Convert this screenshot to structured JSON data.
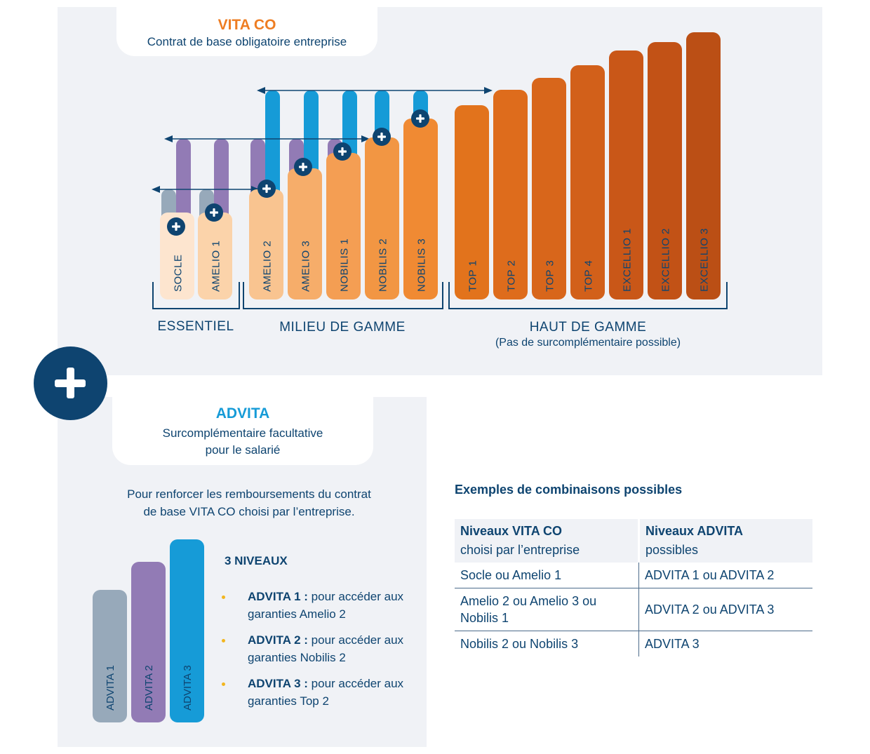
{
  "vita_co": {
    "title": "VITA CO",
    "subtitle": "Contrat de base obligatoire entreprise",
    "bars": [
      {
        "label": "SOCLE",
        "group": "essentiel",
        "level": 1,
        "color": "#fde5cf"
      },
      {
        "label": "AMELIO 1",
        "group": "essentiel",
        "level": 2,
        "color": "#fbd3aa"
      },
      {
        "label": "AMELIO 2",
        "group": "milieu",
        "level": 3,
        "color": "#f9c490"
      },
      {
        "label": "AMELIO 3",
        "group": "milieu",
        "level": 4,
        "color": "#f6ad6a"
      },
      {
        "label": "NOBILIS 1",
        "group": "milieu",
        "level": 5,
        "color": "#f49e53"
      },
      {
        "label": "NOBILIS 2",
        "group": "milieu",
        "level": 6,
        "color": "#f29643"
      },
      {
        "label": "NOBILIS 3",
        "group": "milieu",
        "level": 7,
        "color": "#f08a33"
      },
      {
        "label": "TOP 1",
        "group": "haut",
        "level": 8,
        "color": "#e2731c"
      },
      {
        "label": "TOP 2",
        "group": "haut",
        "level": 9,
        "color": "#de6c1c"
      },
      {
        "label": "TOP 3",
        "group": "haut",
        "level": 10,
        "color": "#d8661b"
      },
      {
        "label": "TOP 4",
        "group": "haut",
        "level": 11,
        "color": "#d2601a"
      },
      {
        "label": "EXCELLIO 1",
        "group": "haut",
        "level": 12,
        "color": "#c95718"
      },
      {
        "label": "EXCELLIO 2",
        "group": "haut",
        "level": 13,
        "color": "#c25216"
      },
      {
        "label": "EXCELLIO 3",
        "group": "haut",
        "level": 14,
        "color": "#bb4f15"
      }
    ],
    "groups": {
      "essentiel": {
        "label": "ESSENTIEL"
      },
      "milieu": {
        "label": "MILIEU DE GAMME"
      },
      "haut": {
        "label": "HAUT DE GAMME",
        "note": "(Pas de surcomplémentaire possible)"
      }
    }
  },
  "advita": {
    "title": "ADVITA",
    "subtitle_line1": "Surcomplémentaire facultative",
    "subtitle_line2": "pour le salarié",
    "intro_line1": "Pour renforcer les remboursements du contrat",
    "intro_line2": "de base VITA CO choisi par l’entreprise.",
    "levels_title": "3 NIVEAUX",
    "levels": [
      {
        "name": "ADVITA 1 :",
        "desc": " pour accéder aux garanties Amelio 2",
        "color": "#97a9ba"
      },
      {
        "name": "ADVITA 2 :",
        "desc": " pour accéder aux garanties Nobilis 2",
        "color": "#927bb5"
      },
      {
        "name": "ADVITA 3 :",
        "desc": " pour accéder aux garanties Top 2",
        "color": "#169bd7"
      }
    ],
    "bar_labels": [
      "ADVITA 1",
      "ADVITA 2",
      "ADVITA 3"
    ]
  },
  "combinations": {
    "title": "Exemples de combinaisons possibles",
    "headers": [
      {
        "bold": "Niveaux VITA CO",
        "sub": "choisi par l’entreprise"
      },
      {
        "bold": "Niveaux ADVITA",
        "sub": "possibles"
      }
    ],
    "rows": [
      [
        "Socle ou Amelio 1",
        "ADVITA 1 ou ADVITA 2"
      ],
      [
        "Amelio 2 ou Amelio 3 ou Nobilis 1",
        "ADVITA 2 ou ADVITA 3"
      ],
      [
        "Nobilis 2 ou Nobilis 3",
        "ADVITA 3"
      ]
    ]
  },
  "colors": {
    "navy": "#0e4470",
    "orange_title": "#ee7d22",
    "blue_title": "#169bd7",
    "panel_bg": "#f0f2f6",
    "bullet": "#f2b61f"
  }
}
